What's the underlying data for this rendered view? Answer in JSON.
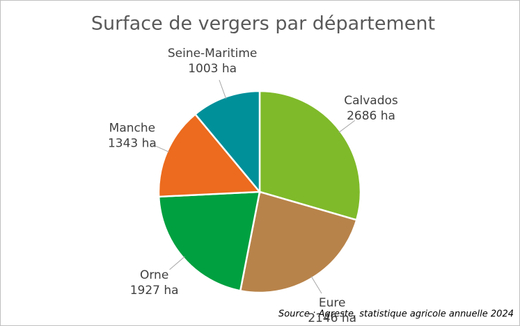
{
  "chart_data": {
    "type": "pie",
    "title": "Surface de vergers par département",
    "categories": [
      "Calvados",
      "Eure",
      "Orne",
      "Manche",
      "Seine-Maritime"
    ],
    "values": [
      2686,
      2146,
      1927,
      1343,
      1003
    ],
    "value_labels": [
      "2686 ha",
      "2146 ha",
      "1927 ha",
      "1343 ha",
      "1003 ha"
    ],
    "colors": [
      "#7fba2a",
      "#b8834a",
      "#00a040",
      "#ec6b1e",
      "#00909a"
    ],
    "source": "Source : Agreste, statistique agricole annuelle 2024"
  }
}
